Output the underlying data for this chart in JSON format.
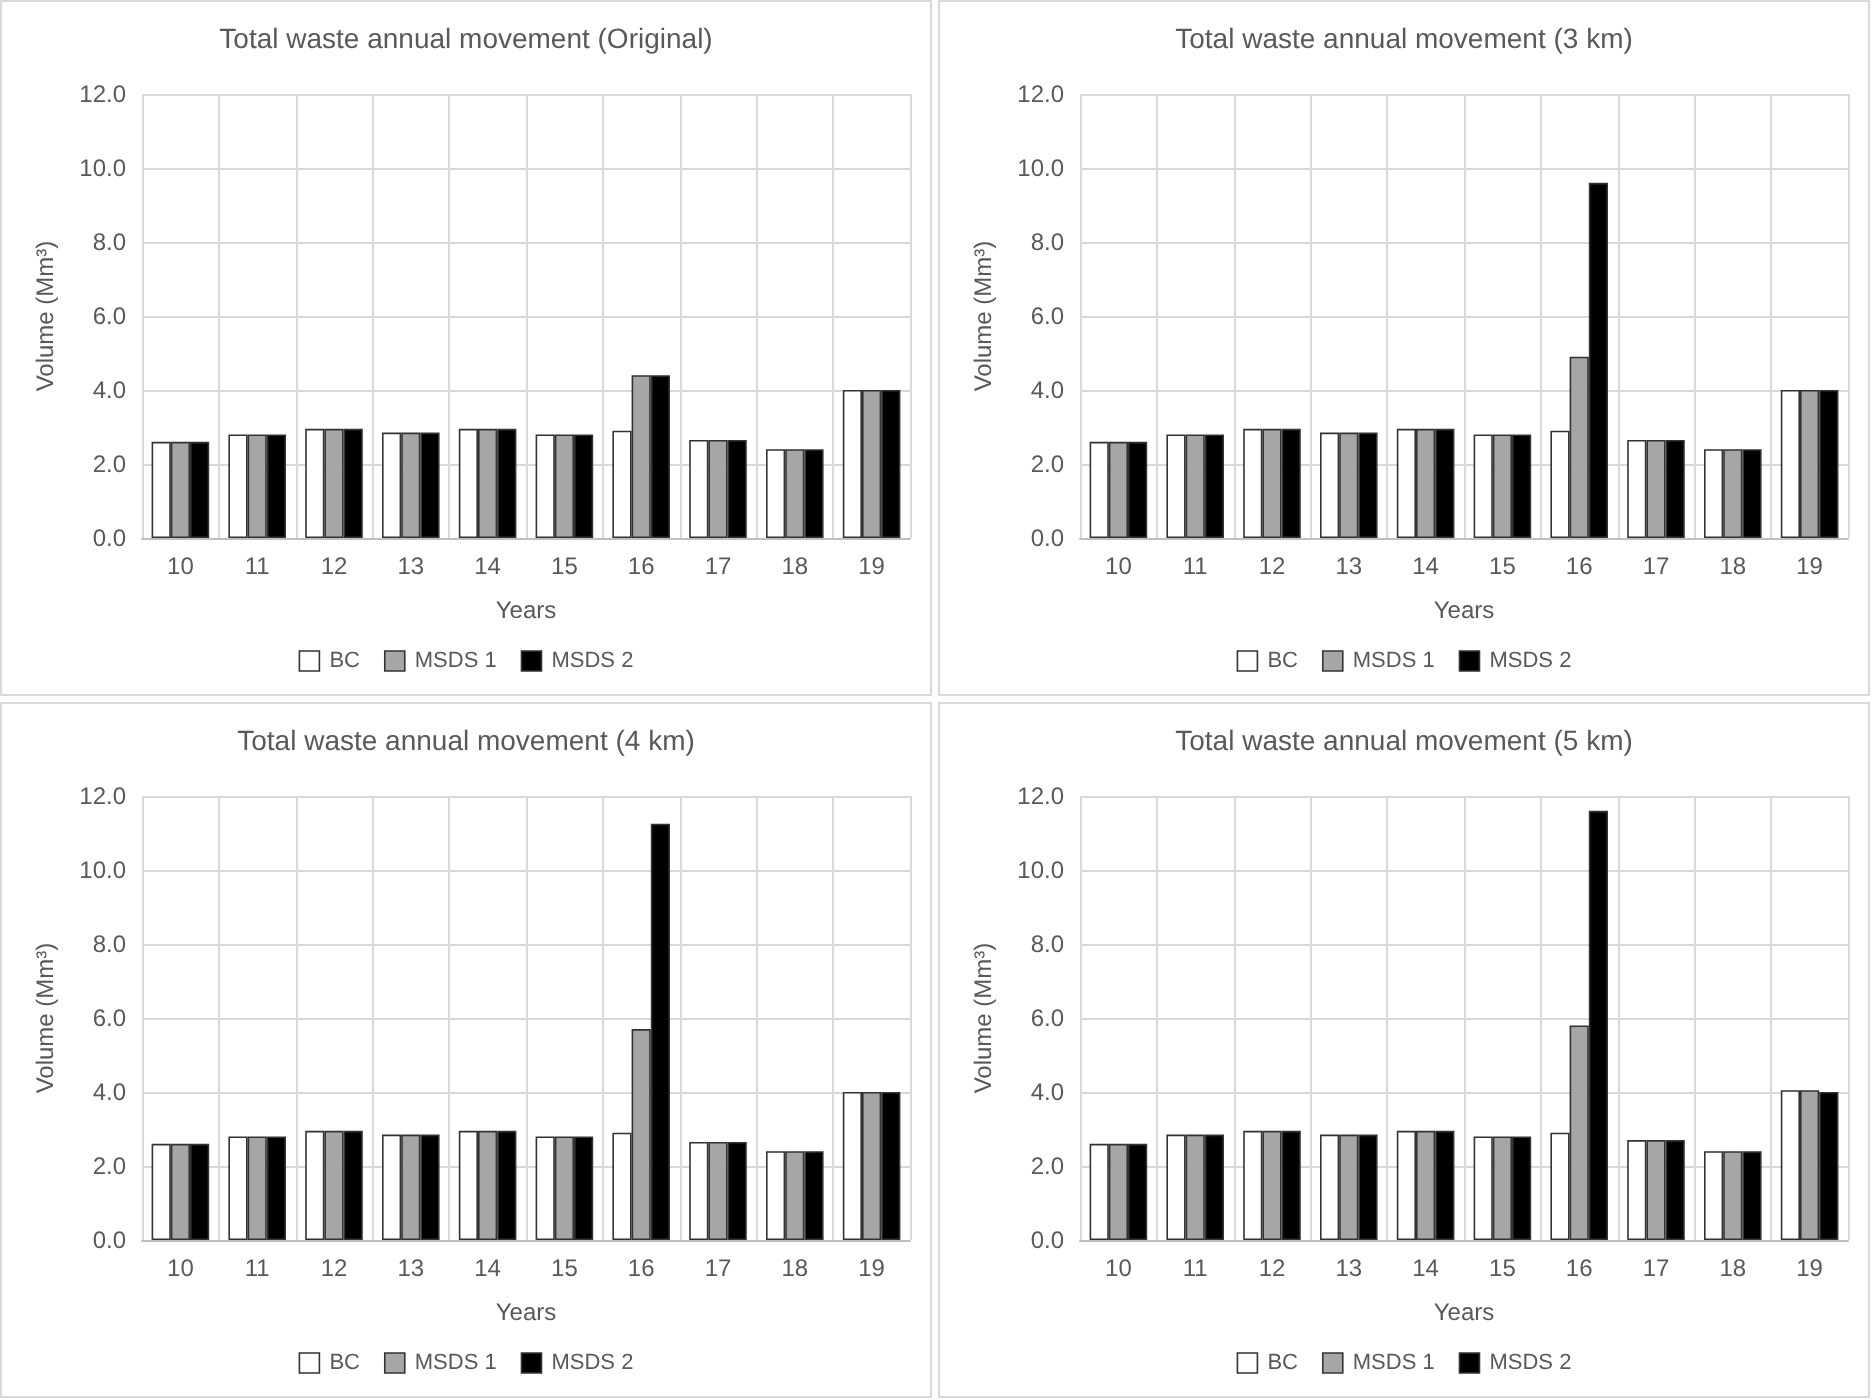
{
  "chart_data": [
    {
      "type": "bar",
      "title": "Total waste annual movement (Original)",
      "xlabel": "Years",
      "ylabel": "Volume (Mm³)",
      "categories": [
        "10",
        "11",
        "12",
        "13",
        "14",
        "15",
        "16",
        "17",
        "18",
        "19"
      ],
      "series": [
        {
          "name": "BC",
          "color": "#ffffff",
          "values": [
            2.6,
            2.8,
            2.95,
            2.85,
            2.95,
            2.8,
            2.9,
            2.65,
            2.4,
            4.0
          ]
        },
        {
          "name": "MSDS 1",
          "color": "#a6a6a6",
          "values": [
            2.6,
            2.8,
            2.95,
            2.85,
            2.95,
            2.8,
            4.4,
            2.65,
            2.4,
            4.0
          ]
        },
        {
          "name": "MSDS 2",
          "color": "#000000",
          "values": [
            2.6,
            2.8,
            2.95,
            2.85,
            2.95,
            2.8,
            4.4,
            2.65,
            2.4,
            4.0
          ]
        }
      ],
      "ylim": [
        0,
        12
      ],
      "yticks": [
        {
          "value": 0,
          "label": "0.0"
        },
        {
          "value": 2,
          "label": "2.0"
        },
        {
          "value": 4,
          "label": "4.0"
        },
        {
          "value": 6,
          "label": "6.0"
        },
        {
          "value": 8,
          "label": "8.0"
        },
        {
          "value": 10,
          "label": "10.0"
        },
        {
          "value": 12,
          "label": "12.0"
        }
      ],
      "grid": true,
      "legend": "bottom"
    },
    {
      "type": "bar",
      "title": "Total waste annual movement (3 km)",
      "xlabel": "Years",
      "ylabel": "Volume (Mm³)",
      "categories": [
        "10",
        "11",
        "12",
        "13",
        "14",
        "15",
        "16",
        "17",
        "18",
        "19"
      ],
      "series": [
        {
          "name": "BC",
          "color": "#ffffff",
          "values": [
            2.6,
            2.8,
            2.95,
            2.85,
            2.95,
            2.8,
            2.9,
            2.65,
            2.4,
            4.0
          ]
        },
        {
          "name": "MSDS 1",
          "color": "#a6a6a6",
          "values": [
            2.6,
            2.8,
            2.95,
            2.85,
            2.95,
            2.8,
            4.9,
            2.65,
            2.4,
            4.0
          ]
        },
        {
          "name": "MSDS 2",
          "color": "#000000",
          "values": [
            2.6,
            2.8,
            2.95,
            2.85,
            2.95,
            2.8,
            9.6,
            2.65,
            2.4,
            4.0
          ]
        }
      ],
      "ylim": [
        0,
        12
      ],
      "yticks": [
        {
          "value": 0,
          "label": "0.0"
        },
        {
          "value": 2,
          "label": "2.0"
        },
        {
          "value": 4,
          "label": "4.0"
        },
        {
          "value": 6,
          "label": "6.0"
        },
        {
          "value": 8,
          "label": "8.0"
        },
        {
          "value": 10,
          "label": "10.0"
        },
        {
          "value": 12,
          "label": "12.0"
        }
      ],
      "grid": true,
      "legend": "bottom"
    },
    {
      "type": "bar",
      "title": "Total waste annual movement (4 km)",
      "xlabel": "Years",
      "ylabel": "Volume (Mm³)",
      "categories": [
        "10",
        "11",
        "12",
        "13",
        "14",
        "15",
        "16",
        "17",
        "18",
        "19"
      ],
      "series": [
        {
          "name": "BC",
          "color": "#ffffff",
          "values": [
            2.6,
            2.8,
            2.95,
            2.85,
            2.95,
            2.8,
            2.9,
            2.65,
            2.4,
            4.0
          ]
        },
        {
          "name": "MSDS 1",
          "color": "#a6a6a6",
          "values": [
            2.6,
            2.8,
            2.95,
            2.85,
            2.95,
            2.8,
            5.7,
            2.65,
            2.4,
            4.0
          ]
        },
        {
          "name": "MSDS 2",
          "color": "#000000",
          "values": [
            2.6,
            2.8,
            2.95,
            2.85,
            2.95,
            2.8,
            11.25,
            2.65,
            2.4,
            4.0
          ]
        }
      ],
      "ylim": [
        0,
        12
      ],
      "yticks": [
        {
          "value": 0,
          "label": "0.0"
        },
        {
          "value": 2,
          "label": "2.0"
        },
        {
          "value": 4,
          "label": "4.0"
        },
        {
          "value": 6,
          "label": "6.0"
        },
        {
          "value": 8,
          "label": "8.0"
        },
        {
          "value": 10,
          "label": "10.0"
        },
        {
          "value": 12,
          "label": "12.0"
        }
      ],
      "grid": true,
      "legend": "bottom"
    },
    {
      "type": "bar",
      "title": "Total waste annual movement (5 km)",
      "xlabel": "Years",
      "ylabel": "Volume (Mm³)",
      "categories": [
        "10",
        "11",
        "12",
        "13",
        "14",
        "15",
        "16",
        "17",
        "18",
        "19"
      ],
      "series": [
        {
          "name": "BC",
          "color": "#ffffff",
          "values": [
            2.6,
            2.85,
            2.95,
            2.85,
            2.95,
            2.8,
            2.9,
            2.7,
            2.4,
            4.05
          ]
        },
        {
          "name": "MSDS 1",
          "color": "#a6a6a6",
          "values": [
            2.6,
            2.85,
            2.95,
            2.85,
            2.95,
            2.8,
            5.8,
            2.7,
            2.4,
            4.05
          ]
        },
        {
          "name": "MSDS 2",
          "color": "#000000",
          "values": [
            2.6,
            2.85,
            2.95,
            2.85,
            2.95,
            2.8,
            11.6,
            2.7,
            2.4,
            4.0
          ]
        }
      ],
      "ylim": [
        0,
        12
      ],
      "yticks": [
        {
          "value": 0,
          "label": "0.0"
        },
        {
          "value": 2,
          "label": "2.0"
        },
        {
          "value": 4,
          "label": "4.0"
        },
        {
          "value": 6,
          "label": "6.0"
        },
        {
          "value": 8,
          "label": "8.0"
        },
        {
          "value": 10,
          "label": "10.0"
        },
        {
          "value": 12,
          "label": "12.0"
        }
      ],
      "grid": true,
      "legend": "bottom"
    }
  ]
}
